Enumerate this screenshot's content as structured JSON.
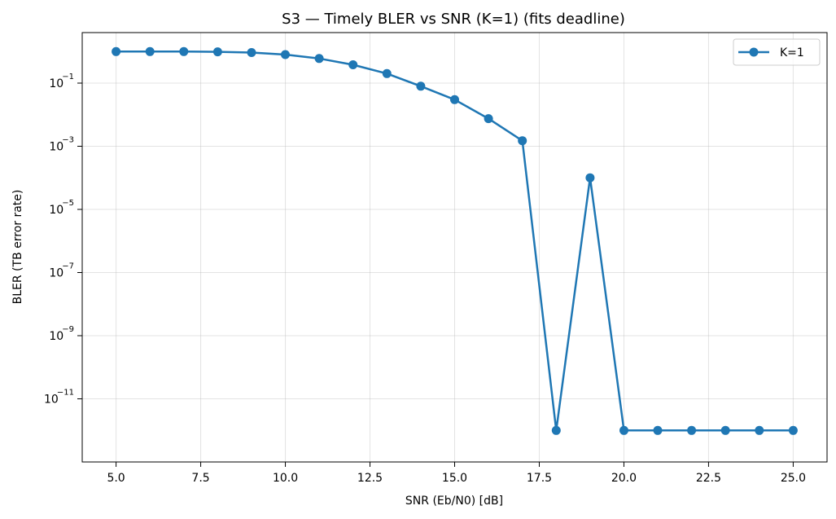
{
  "chart_data": {
    "type": "line",
    "title": "S3 — Timely BLER vs SNR (K=1) (fits deadline)",
    "xlabel": "SNR (Eb/N0) [dB]",
    "ylabel": "BLER (TB error rate)",
    "xlim": [
      4.0,
      26.0
    ],
    "ylim_exponent": [
      -13,
      0.6
    ],
    "yscale": "log",
    "grid": true,
    "legend_position": "top-right",
    "x_ticks": [
      "5.0",
      "7.5",
      "10.0",
      "12.5",
      "15.0",
      "17.5",
      "20.0",
      "22.5",
      "25.0"
    ],
    "y_ticks": [
      {
        "exp": -1,
        "base": "10",
        "power": "−1"
      },
      {
        "exp": -3,
        "base": "10",
        "power": "−3"
      },
      {
        "exp": -5,
        "base": "10",
        "power": "−5"
      },
      {
        "exp": -7,
        "base": "10",
        "power": "−7"
      },
      {
        "exp": -9,
        "base": "10",
        "power": "−9"
      },
      {
        "exp": -11,
        "base": "10",
        "power": "−11"
      }
    ],
    "series": [
      {
        "name": "K=1",
        "color": "#1f77b4",
        "x": [
          5,
          6,
          7,
          8,
          9,
          10,
          11,
          12,
          13,
          14,
          15,
          16,
          17,
          18,
          19,
          20,
          21,
          22,
          23,
          24,
          25
        ],
        "y": [
          1.0,
          1.0,
          1.0,
          0.98,
          0.93,
          0.8,
          0.6,
          0.38,
          0.2,
          0.08,
          0.03,
          0.0075,
          0.0015,
          1e-12,
          0.0001,
          1e-12,
          1e-12,
          1e-12,
          1e-12,
          1e-12,
          1e-12
        ]
      }
    ]
  }
}
